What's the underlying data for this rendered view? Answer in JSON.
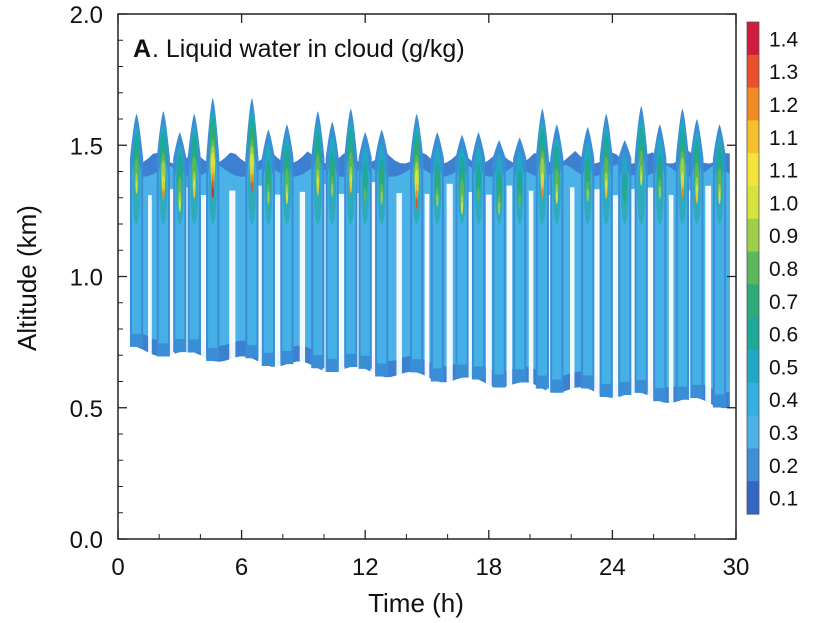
{
  "chart_data": {
    "type": "heatmap",
    "panel_letter": "A",
    "title": ". Liquid water in cloud (g/kg)",
    "xlabel": "Time (h)",
    "ylabel": "Altitude (km)",
    "xlim": [
      0,
      30
    ],
    "ylim": [
      0.0,
      2.0
    ],
    "x_ticks": [
      0,
      6,
      12,
      18,
      24,
      30
    ],
    "x_tick_labels": [
      "0",
      "6",
      "12",
      "18",
      "24",
      "30"
    ],
    "y_ticks": [
      0.0,
      0.5,
      1.0,
      1.5,
      2.0
    ],
    "y_tick_labels": [
      "0.0",
      "0.5",
      "1.0",
      "1.5",
      "2.0"
    ],
    "colorbar": {
      "labels": [
        "1.4",
        "1.3",
        "1.2",
        "1.1",
        "1.1",
        "1.0",
        "0.9",
        "0.8",
        "0.7",
        "0.6",
        "0.5",
        "0.4",
        "0.3",
        "0.2",
        "0.1"
      ],
      "colors": [
        "#d01c3c",
        "#e8512c",
        "#f08a24",
        "#f6c02c",
        "#f4e43a",
        "#d6e23e",
        "#9fce4a",
        "#5cb85a",
        "#2eaa78",
        "#1ea89a",
        "#22a8c4",
        "#35aee0",
        "#4ab2e6",
        "#3e8fd6",
        "#3566c4"
      ]
    },
    "series": [
      {
        "x": [
          0.9,
          2.2,
          3.0,
          3.7,
          4.6,
          6.5,
          7.3,
          8.2,
          9.7,
          10.4,
          11.3,
          12.0,
          12.8,
          14.5,
          15.5,
          16.7,
          17.5,
          18.5,
          19.5,
          20.6,
          21.3,
          22.8,
          23.7,
          24.6,
          25.4,
          26.3,
          27.4,
          28.1,
          29.2
        ],
        "top_km": [
          1.62,
          1.63,
          1.55,
          1.62,
          1.68,
          1.68,
          1.56,
          1.58,
          1.63,
          1.59,
          1.64,
          1.55,
          1.56,
          1.62,
          1.55,
          1.54,
          1.55,
          1.52,
          1.53,
          1.64,
          1.58,
          1.57,
          1.62,
          1.52,
          1.65,
          1.58,
          1.64,
          1.6,
          1.58
        ],
        "peak_lwc": [
          1.0,
          1.2,
          1.0,
          1.1,
          1.4,
          1.3,
          0.9,
          1.0,
          1.1,
          0.9,
          1.1,
          0.8,
          0.9,
          1.3,
          0.9,
          1.0,
          0.8,
          0.9,
          0.8,
          1.2,
          1.0,
          0.9,
          1.1,
          0.7,
          1.0,
          0.9,
          1.2,
          1.1,
          1.0
        ]
      }
    ]
  }
}
